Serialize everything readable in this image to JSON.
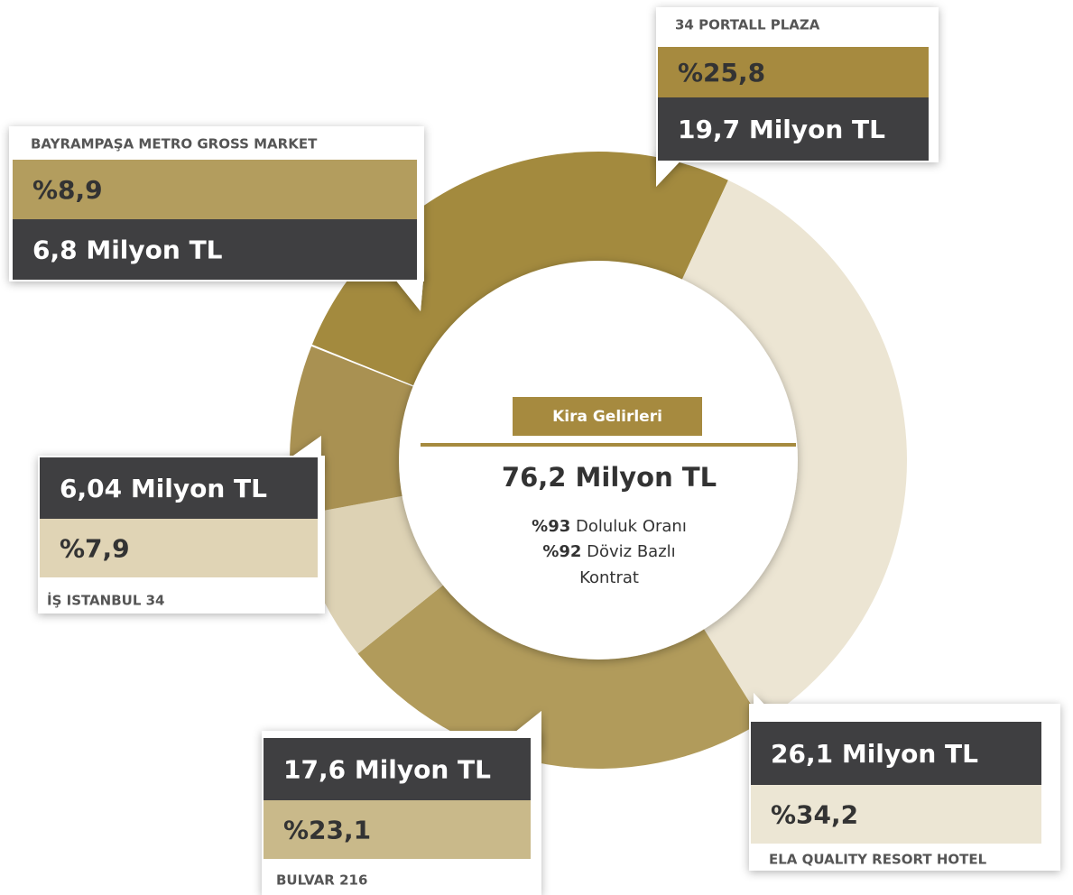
{
  "chart_data": {
    "type": "donut",
    "categories": [
      "34 PORTALL PLAZA",
      "ELA QUALITY RESORT HOTEL",
      "BULVAR 216",
      "İŞ ISTANBUL 34",
      "BAYRAMPAŞA METRO GROSS MARKET"
    ],
    "values": [
      25.8,
      34.2,
      23.1,
      7.9,
      8.9
    ],
    "value_labels": [
      "%25,8",
      "%34,2",
      "%23,1",
      "%7,9",
      "%8,9"
    ],
    "amount_labels": [
      "19,7 Milyon TL",
      "26,1 Milyon TL",
      "17,6 Milyon TL",
      "6,04 Milyon TL",
      "6,8 Milyon TL"
    ],
    "colors": [
      "#a38a3e",
      "#ece5d3",
      "#b19b5b",
      "#ddd2b4",
      "#a99152"
    ],
    "center": {
      "title": "Kira Gelirleri",
      "total": "76,2 Milyon TL",
      "notes": [
        {
          "bold": "%93",
          "text": "Doluluk Oranı"
        },
        {
          "bold": "%92",
          "text": "Döviz Bazlı"
        }
      ],
      "extra": "Kontrat"
    }
  }
}
